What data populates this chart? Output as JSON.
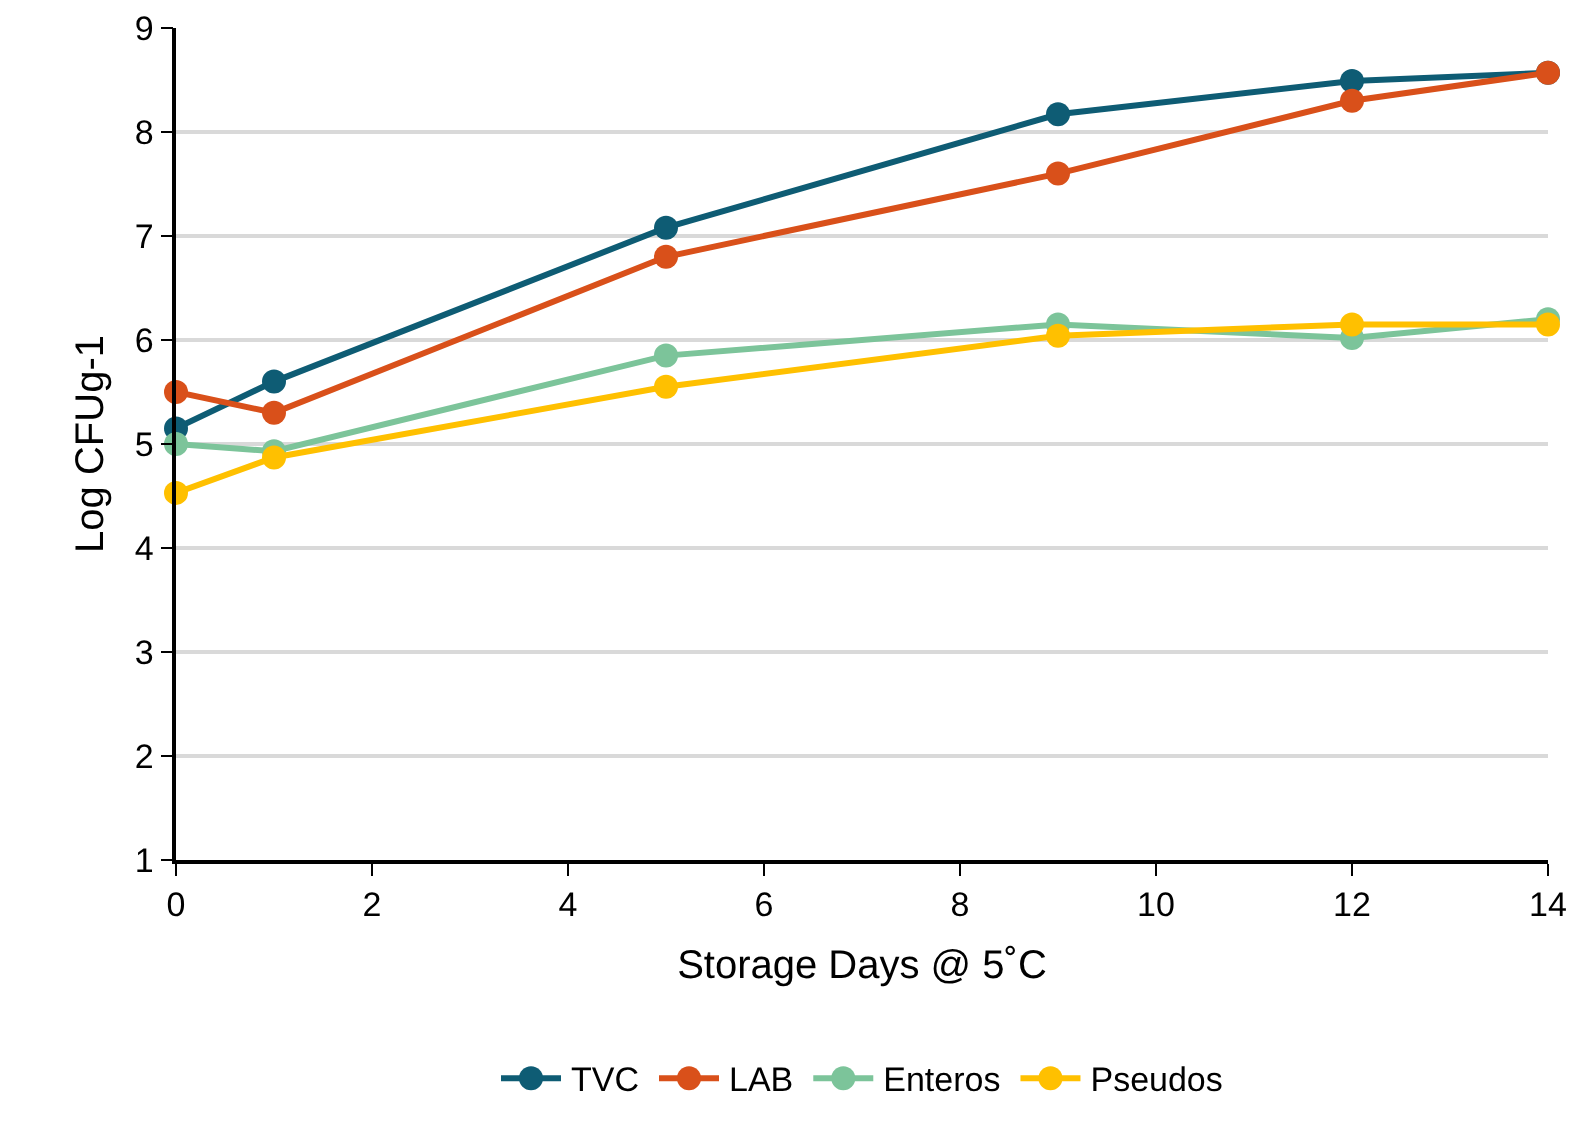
{
  "chart_data": {
    "type": "line",
    "xlabel": "Storage Days @ 5˚C",
    "ylabel": "Log CFUg-1",
    "x": [
      0,
      1,
      5,
      9,
      12,
      14
    ],
    "series": [
      {
        "name": "TVC",
        "color": "#0e5c74",
        "values": [
          5.15,
          5.6,
          7.08,
          8.17,
          8.49,
          8.57
        ]
      },
      {
        "name": "LAB",
        "color": "#d9501a",
        "values": [
          5.5,
          5.3,
          6.8,
          7.6,
          8.3,
          8.57
        ]
      },
      {
        "name": "Enteros",
        "color": "#7cc49a",
        "values": [
          5.0,
          4.93,
          5.85,
          6.15,
          6.02,
          6.2
        ]
      },
      {
        "name": "Pseudos",
        "color": "#ffc000",
        "values": [
          4.53,
          4.87,
          5.55,
          6.04,
          6.15,
          6.15
        ]
      }
    ],
    "xlim": [
      0,
      14
    ],
    "xticks": [
      0,
      2,
      4,
      6,
      8,
      10,
      12,
      14
    ],
    "ylim": [
      1,
      9
    ],
    "yticks": [
      1,
      2,
      3,
      4,
      5,
      6,
      7,
      8,
      9
    ],
    "grid": "y",
    "legend": "bottom",
    "marker": "circle",
    "line_style": "solid"
  }
}
